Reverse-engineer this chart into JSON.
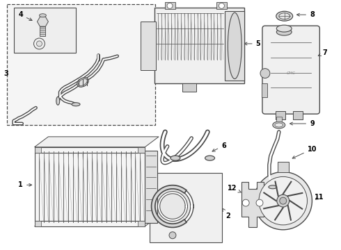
{
  "bg_color": "#ffffff",
  "line_color": "#4a4a4a",
  "fig_width": 4.9,
  "fig_height": 3.6,
  "dpi": 100,
  "label_fontsize": 7.0,
  "lw": 0.8
}
